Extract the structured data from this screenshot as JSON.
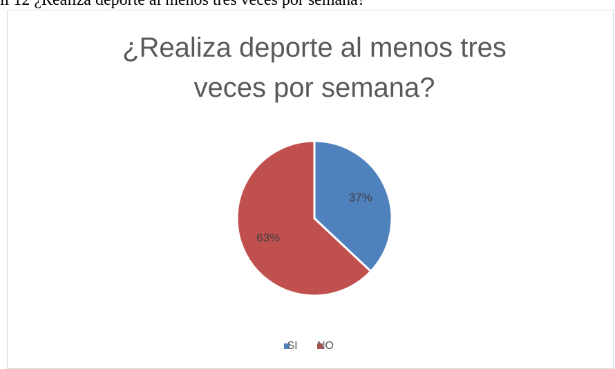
{
  "caption": "il 12 ¿Realiza deporte al menos tres veces por semana?",
  "chart_data": {
    "type": "pie",
    "title": "¿Realiza deporte al menos tres veces por semana?",
    "categories": [
      "SI",
      "NO"
    ],
    "values": [
      37,
      63
    ],
    "value_labels": [
      "37%",
      "63%"
    ],
    "colors": [
      "#4f81bd",
      "#c0504d"
    ],
    "legend": "bottom"
  }
}
